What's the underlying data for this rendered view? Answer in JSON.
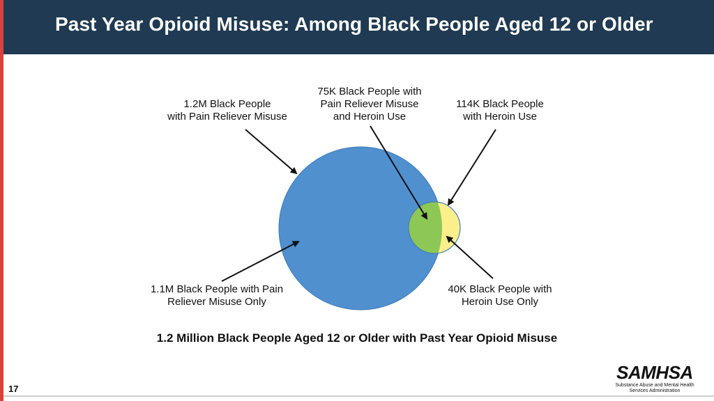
{
  "slide": {
    "title": "Past Year Opioid Misuse: Among Black People Aged 12 or Older",
    "page_number": "17"
  },
  "colors": {
    "header_bg": "#1f3a52",
    "accent_bar": "#d9433b",
    "pain_reliever_circle": "#5090cf",
    "heroin_circle": "#fbef8b",
    "overlap": "#8dc755"
  },
  "diagram": {
    "callouts": {
      "pain_reliever_misuse": "1.2M Black People\nwith Pain Reliever Misuse",
      "both": "75K Black People with\nPain Reliever Misuse\nand Heroin Use",
      "heroin_use": "114K Black People\nwith Heroin Use",
      "pain_reliever_only": "1.1M Black People with Pain\nReliever Misuse Only",
      "heroin_only": "40K Black People with\nHeroin Use Only"
    },
    "sets": [
      {
        "key": "pain_reliever_misuse",
        "value_thousands": 1200
      },
      {
        "key": "heroin_use",
        "value_thousands": 114
      }
    ],
    "overlap_thousands": 75,
    "summary": "1.2 Million Black People Aged 12 or Older with Past Year Opioid Misuse"
  },
  "logo": {
    "name": "SAMHSA",
    "tagline": "Substance Abuse and Mental Health\nServices Administration"
  }
}
